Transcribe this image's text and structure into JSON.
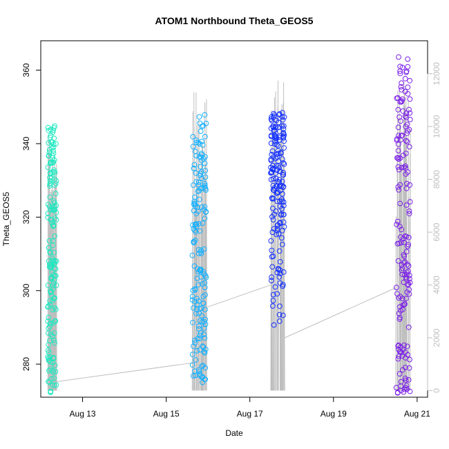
{
  "chart_data": {
    "type": "scatter",
    "title": "ATOM1 Northbound Theta_GEOS5",
    "xlabel": "Date",
    "ylabel": "Theta_GEOS5",
    "x_ticks": [
      "Aug 13",
      "Aug 15",
      "Aug 17",
      "Aug 19",
      "Aug 21"
    ],
    "x_range": [
      "2016-08-12 00:00",
      "2016-08-21 06:00"
    ],
    "ylim": [
      271,
      368
    ],
    "y_ticks": [
      280,
      300,
      320,
      340,
      360
    ],
    "y2_range": [
      -250,
      13250
    ],
    "y2_ticks": [
      0,
      2000,
      4000,
      6000,
      8000,
      10000,
      12000
    ],
    "y2_color": "#bebebe",
    "grid": false,
    "legend": "none",
    "clusters": [
      {
        "start": "2016-08-12 04:00",
        "end": "2016-08-12 09:00",
        "color": "#1de8c0",
        "theta_min": 272,
        "theta_max": 345,
        "alt_max": 10200
      },
      {
        "start": "2016-08-15 15:00",
        "end": "2016-08-15 23:00",
        "color": "#14b0ff",
        "theta_min": 275,
        "theta_max": 348,
        "alt_max": 11500
      },
      {
        "start": "2016-08-17 12:00",
        "end": "2016-08-17 20:00",
        "color": "#1430ff",
        "theta_min": 288,
        "theta_max": 349,
        "alt_max": 11900
      },
      {
        "start": "2016-08-20 12:00",
        "end": "2016-08-20 20:00",
        "color": "#7a1ee8",
        "theta_min": 272,
        "theta_max": 364,
        "alt_max": 11700
      }
    ],
    "altitude_connections": [
      {
        "from": [
          "2016-08-12 05:00",
          300
        ],
        "to": [
          "2016-08-15 15:00",
          1050
        ]
      },
      {
        "from": [
          "2016-08-15 23:00",
          3150
        ],
        "to": [
          "2016-08-17 12:00",
          4000
        ]
      },
      {
        "from": [
          "2016-08-17 20:00",
          2000
        ],
        "to": [
          "2016-08-20 12:00",
          3900
        ]
      }
    ]
  }
}
